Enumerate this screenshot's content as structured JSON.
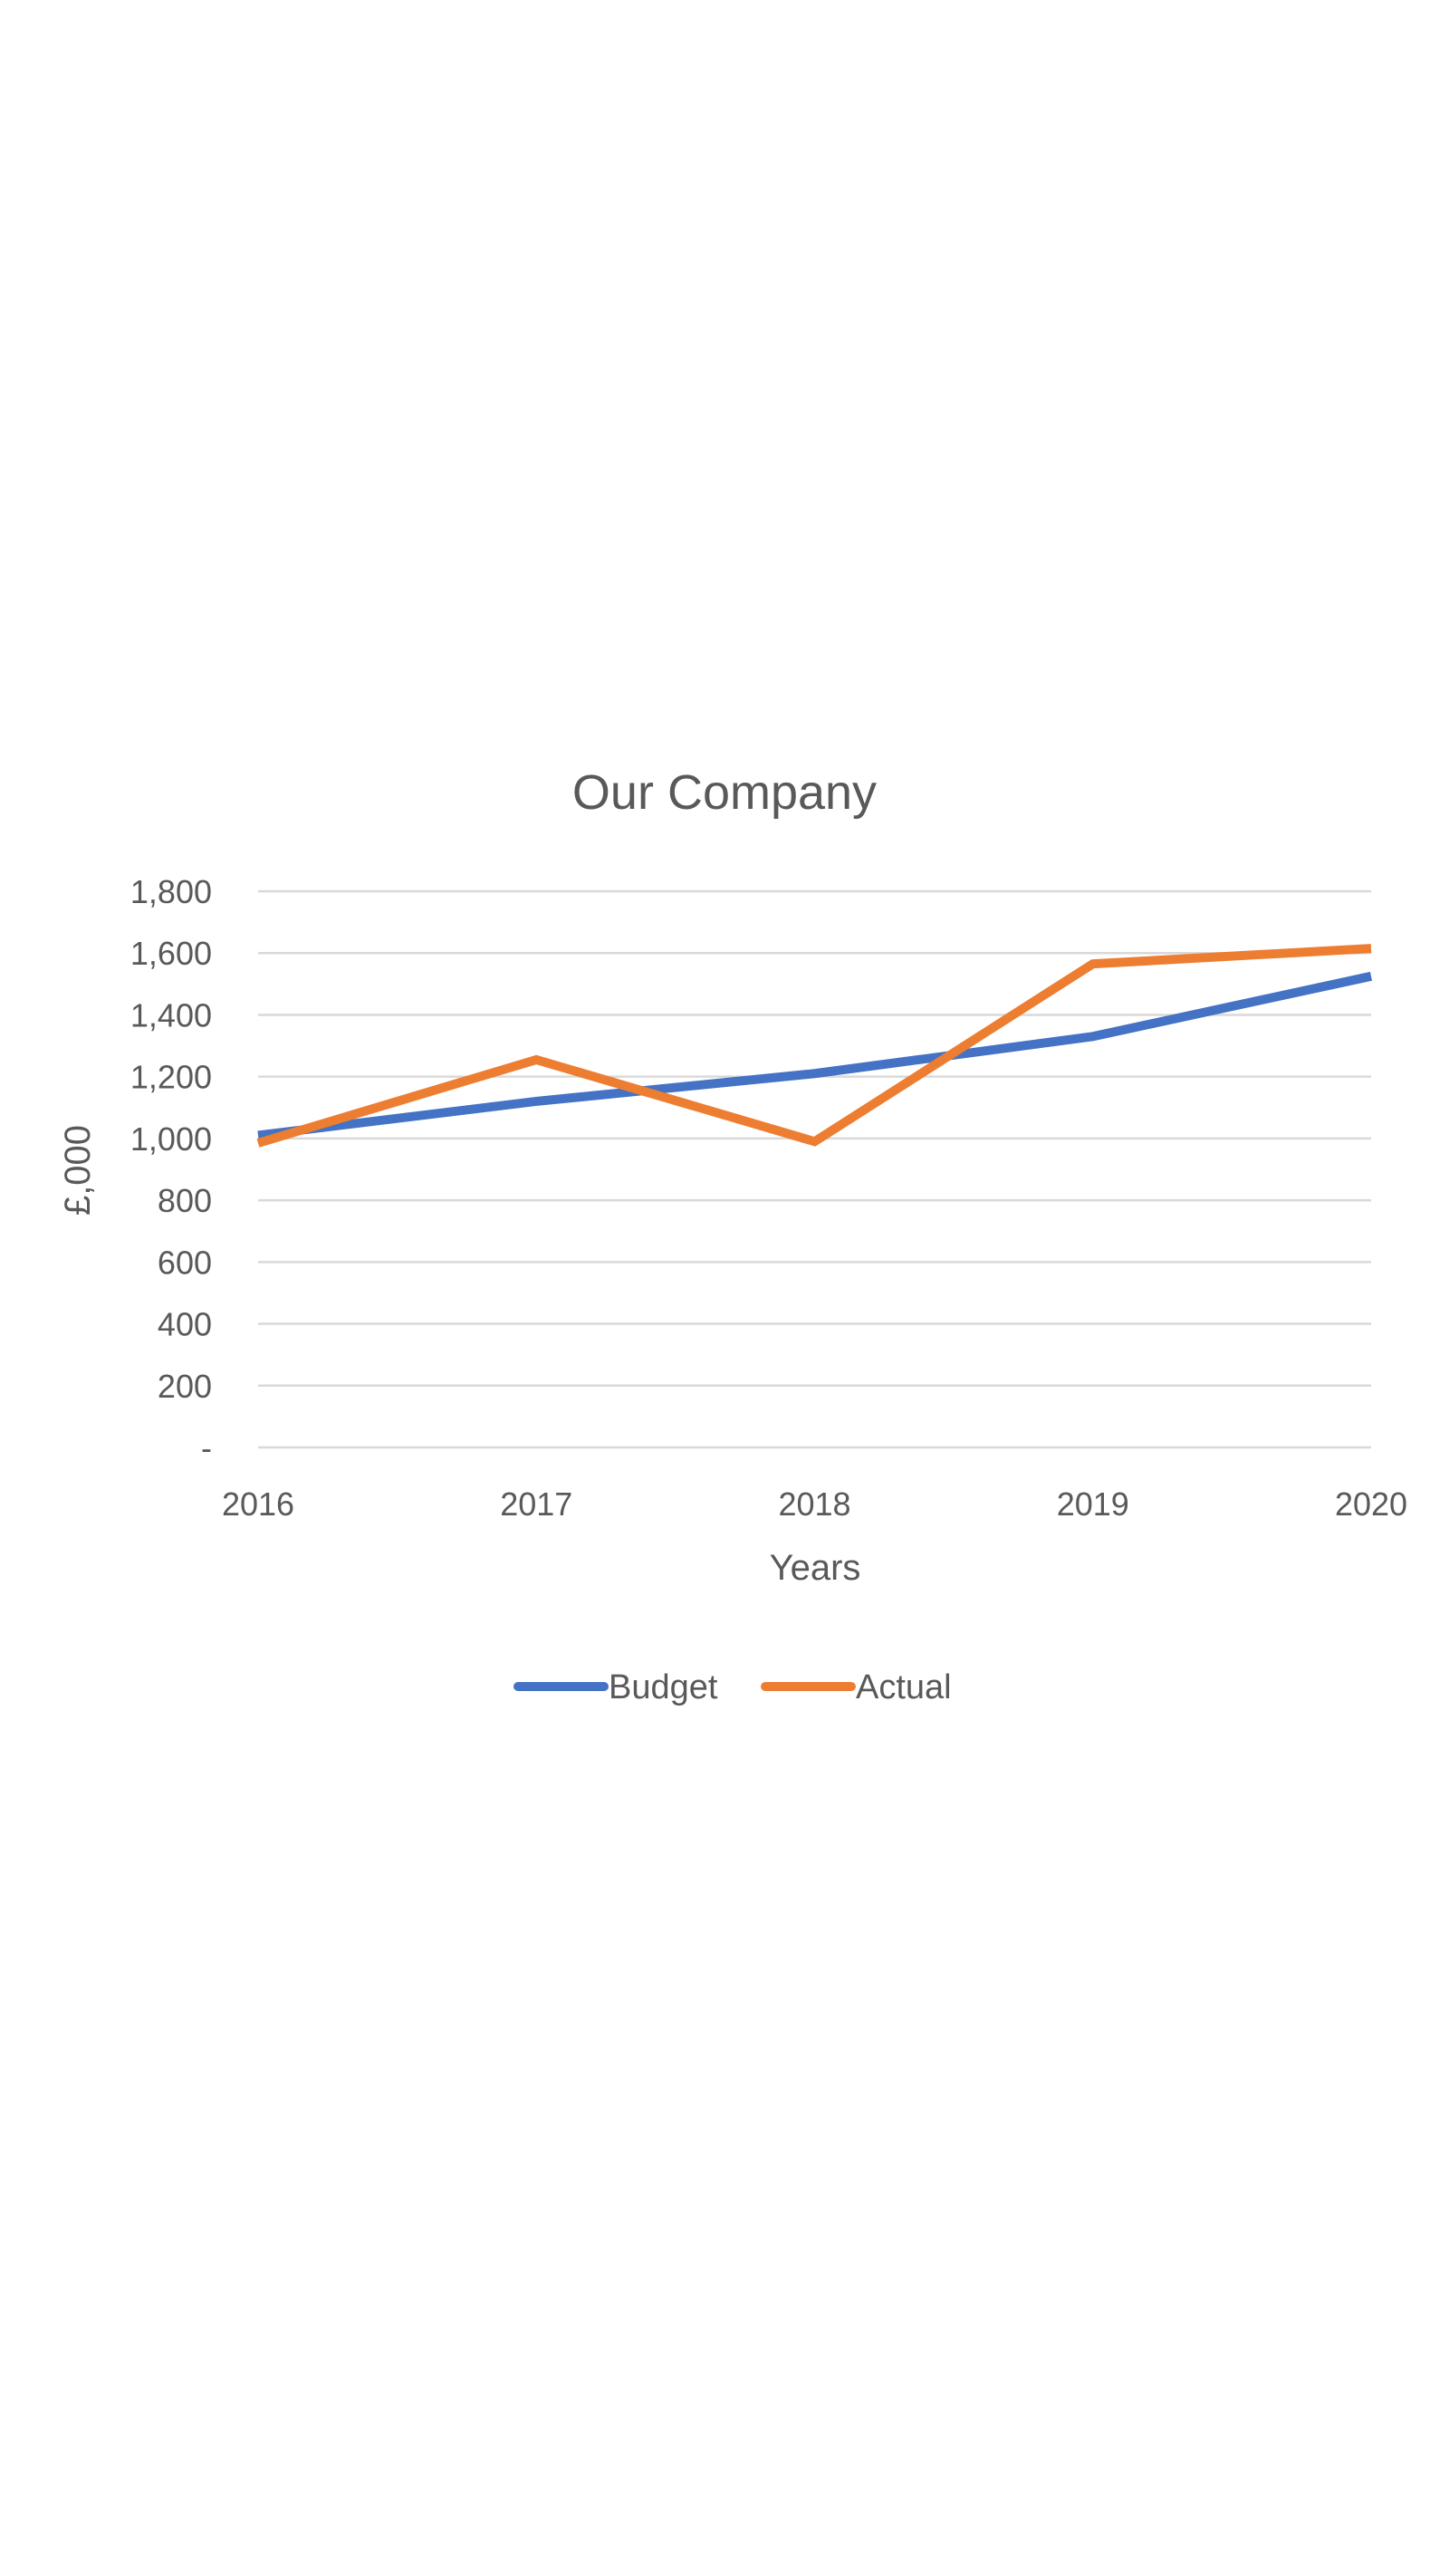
{
  "chart_data": {
    "type": "line",
    "title": "Our Company",
    "xlabel": "Years",
    "ylabel": "£,000",
    "categories": [
      "2016",
      "2017",
      "2018",
      "2019",
      "2020"
    ],
    "ylim": [
      0,
      1800
    ],
    "y_ticks": [
      0,
      200,
      400,
      600,
      800,
      1000,
      1200,
      1400,
      1600,
      1800
    ],
    "y_tick_labels": [
      "-",
      "200",
      "400",
      "600",
      "800",
      "1,000",
      "1,200",
      "1,400",
      "1,600",
      "1,800"
    ],
    "grid": true,
    "legend_position": "bottom",
    "series": [
      {
        "name": "Budget",
        "color": "#4472C4",
        "values": [
          1010,
          1120,
          1210,
          1330,
          1525
        ]
      },
      {
        "name": "Actual",
        "color": "#ED7D31",
        "values": [
          985,
          1255,
          990,
          1565,
          1615
        ]
      }
    ]
  }
}
